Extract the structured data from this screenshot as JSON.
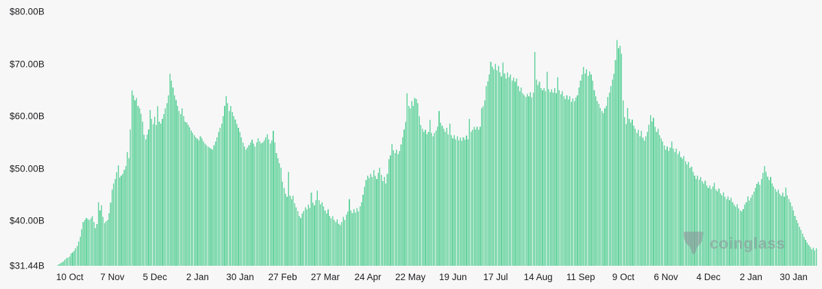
{
  "watermark": {
    "text": "coinglass",
    "logo": "coinglass-paw-logo",
    "color": "#8b9299"
  },
  "chart_data": {
    "type": "bar",
    "title": "",
    "xlabel": "",
    "ylabel": "",
    "unit_prefix": "$",
    "unit_suffix": "B",
    "bar_color": "#62d29b",
    "background_color": "#f7f7f8",
    "grid": false,
    "legend": false,
    "y_min": 31.44,
    "y_max": 80,
    "y_ticks": [
      {
        "label": "$80.00B",
        "value": 80
      },
      {
        "label": "$70.00B",
        "value": 70
      },
      {
        "label": "$60.00B",
        "value": 60
      },
      {
        "label": "$50.00B",
        "value": 50
      },
      {
        "label": "$40.00B",
        "value": 40
      },
      {
        "label": "$31.44B",
        "value": 31.44
      }
    ],
    "x_ticks": [
      {
        "label": "10 Oct",
        "index": 8
      },
      {
        "label": "7 Nov",
        "index": 36
      },
      {
        "label": "5 Dec",
        "index": 64
      },
      {
        "label": "2 Jan",
        "index": 92
      },
      {
        "label": "30 Jan",
        "index": 120
      },
      {
        "label": "27 Feb",
        "index": 148
      },
      {
        "label": "27 Mar",
        "index": 176
      },
      {
        "label": "24 Apr",
        "index": 204
      },
      {
        "label": "22 May",
        "index": 232
      },
      {
        "label": "19 Jun",
        "index": 260
      },
      {
        "label": "17 Jul",
        "index": 288
      },
      {
        "label": "14 Aug",
        "index": 316
      },
      {
        "label": "11 Sep",
        "index": 344
      },
      {
        "label": "9 Oct",
        "index": 372
      },
      {
        "label": "6 Nov",
        "index": 400
      },
      {
        "label": "4 Dec",
        "index": 428
      },
      {
        "label": "2 Jan",
        "index": 456
      },
      {
        "label": "30 Jan",
        "index": 484
      }
    ],
    "values": [
      31.5,
      31.7,
      31.9,
      32.1,
      32.3,
      32.6,
      32.9,
      33.0,
      33.2,
      33.8,
      34.0,
      34.3,
      34.8,
      35.2,
      36.1,
      37.0,
      38.4,
      39.8,
      40.2,
      40.6,
      40.4,
      40.2,
      40.5,
      40.9,
      39.8,
      38.6,
      39.4,
      43.6,
      42.0,
      43.0,
      40.8,
      39.6,
      39.9,
      40.2,
      41.5,
      43.5,
      46.0,
      47.2,
      48.0,
      49.3,
      50.6,
      48.3,
      48.7,
      49.0,
      49.8,
      50.5,
      53.2,
      52.0,
      57.5,
      64.9,
      64.0,
      63.0,
      63.5,
      62.0,
      61.5,
      60.5,
      59.0,
      56.5,
      55.6,
      56.5,
      57.5,
      61.2,
      59.5,
      58.5,
      59.9,
      58.3,
      61.9,
      59.0,
      58.6,
      59.5,
      60.4,
      61.5,
      62.5,
      64.0,
      68.1,
      66.8,
      65.5,
      64.0,
      63.1,
      62.0,
      61.0,
      60.4,
      61.5,
      60.0,
      59.0,
      58.8,
      58.3,
      57.9,
      57.3,
      56.8,
      56.4,
      56.0,
      55.7,
      55.4,
      56.2,
      55.8,
      55.2,
      54.8,
      54.5,
      54.2,
      54.0,
      53.8,
      53.6,
      54.5,
      55.2,
      56.0,
      57.0,
      57.8,
      58.6,
      60.0,
      62.0,
      63.9,
      62.5,
      61.0,
      62.0,
      60.8,
      60.0,
      59.4,
      58.5,
      57.8,
      57.0,
      56.0,
      55.0,
      54.2,
      53.6,
      54.0,
      54.5,
      55.0,
      55.5,
      54.8,
      54.2,
      55.0,
      55.8,
      55.2,
      54.8,
      55.0,
      55.4,
      56.0,
      56.6,
      55.6,
      54.8,
      55.4,
      57.2,
      55.0,
      53.0,
      52.0,
      51.0,
      50.2,
      47.5,
      46.3,
      45.2,
      44.6,
      49.4,
      44.8,
      44.2,
      44.8,
      43.4,
      42.6,
      41.9,
      41.0,
      40.6,
      41.4,
      41.9,
      42.6,
      42.2,
      43.1,
      42.5,
      45.4,
      43.5,
      43.0,
      44.0,
      45.8,
      44.0,
      43.2,
      43.6,
      42.8,
      42.0,
      41.4,
      42.2,
      41.0,
      40.5,
      40.9,
      40.2,
      39.8,
      40.3,
      39.5,
      39.2,
      39.8,
      40.8,
      40.2,
      41.2,
      41.8,
      44.2,
      42.0,
      41.5,
      42.3,
      41.6,
      42.5,
      41.8,
      42.8,
      43.6,
      45.0,
      46.5,
      47.8,
      48.7,
      48.2,
      49.0,
      48.4,
      49.7,
      48.6,
      48.0,
      49.2,
      50.2,
      48.8,
      47.6,
      48.4,
      47.2,
      49.0,
      51.8,
      52.5,
      54.7,
      53.5,
      53.0,
      53.6,
      52.8,
      53.4,
      54.6,
      56.0,
      57.5,
      58.9,
      64.4,
      62.0,
      61.5,
      62.9,
      62.0,
      63.5,
      63.3,
      62.5,
      60.0,
      58.3,
      57.6,
      57.0,
      57.4,
      56.6,
      57.0,
      59.3,
      56.8,
      56.2,
      56.8,
      57.3,
      58.0,
      61.0,
      58.8,
      58.2,
      57.6,
      57.0,
      57.8,
      56.6,
      58.6,
      56.4,
      55.8,
      56.4,
      55.6,
      56.2,
      55.4,
      55.9,
      55.3,
      56.0,
      55.5,
      56.3,
      55.6,
      59.5,
      57.0,
      57.4,
      58.0,
      57.5,
      58.0,
      57.4,
      58.0,
      61.5,
      61.9,
      63.0,
      65.8,
      66.7,
      68.0,
      70.4,
      69.5,
      69.0,
      70.0,
      68.8,
      69.6,
      68.4,
      67.6,
      70.3,
      68.2,
      67.2,
      68.4,
      67.5,
      68.0,
      66.8,
      67.4,
      66.6,
      67.2,
      65.8,
      64.8,
      65.5,
      64.4,
      64.0,
      63.7,
      64.3,
      63.8,
      64.6,
      63.6,
      64.5,
      72.3,
      67.0,
      66.0,
      66.6,
      65.4,
      65.0,
      65.4,
      64.8,
      68.5,
      65.2,
      64.6,
      65.1,
      64.5,
      65.4,
      64.4,
      67.5,
      65.0,
      64.2,
      64.8,
      63.8,
      63.3,
      64.0,
      63.2,
      63.8,
      62.8,
      63.4,
      62.9,
      63.6,
      64.0,
      65.5,
      66.8,
      68.0,
      69.4,
      68.2,
      69.0,
      67.7,
      68.6,
      68.0,
      66.8,
      65.0,
      63.8,
      62.9,
      62.4,
      61.6,
      61.0,
      60.6,
      61.5,
      62.0,
      63.7,
      64.5,
      65.8,
      67.0,
      68.1,
      70.7,
      74.6,
      73.0,
      73.5,
      72.0,
      63.0,
      59.8,
      58.5,
      61.6,
      59.5,
      58.8,
      59.4,
      58.2,
      57.6,
      56.8,
      57.4,
      56.2,
      57.2,
      55.9,
      55.3,
      56.2,
      57.0,
      58.4,
      60.2,
      59.0,
      59.7,
      58.0,
      57.0,
      57.6,
      56.4,
      55.8,
      55.2,
      54.4,
      53.6,
      54.2,
      53.4,
      54.0,
      55.2,
      53.8,
      53.2,
      53.8,
      52.8,
      53.3,
      52.2,
      51.9,
      52.4,
      51.4,
      50.8,
      51.3,
      50.1,
      50.4,
      49.4,
      48.7,
      48.0,
      48.7,
      47.9,
      48.4,
      47.6,
      47.2,
      47.7,
      46.8,
      46.3,
      46.8,
      46.1,
      46.6,
      47.3,
      46.0,
      45.7,
      46.2,
      45.3,
      44.9,
      45.5,
      44.6,
      44.2,
      44.7,
      44.0,
      44.4,
      43.6,
      43.1,
      42.7,
      43.2,
      42.4,
      42.0,
      41.8,
      42.3,
      43.1,
      43.6,
      44.7,
      43.9,
      44.4,
      45.0,
      45.6,
      46.3,
      47.1,
      47.5,
      46.9,
      48.0,
      49.2,
      50.5,
      49.4,
      48.5,
      47.8,
      48.4,
      47.2,
      46.6,
      46.1,
      45.6,
      46.0,
      45.2,
      44.8,
      45.4,
      44.6,
      46.4,
      44.9,
      44.2,
      43.6,
      42.8,
      42.0,
      41.0,
      40.2,
      39.6,
      38.9,
      38.3,
      37.6,
      36.9,
      36.4,
      35.9,
      35.4,
      35.0,
      34.6,
      34.9,
      34.4,
      34.8
    ]
  }
}
